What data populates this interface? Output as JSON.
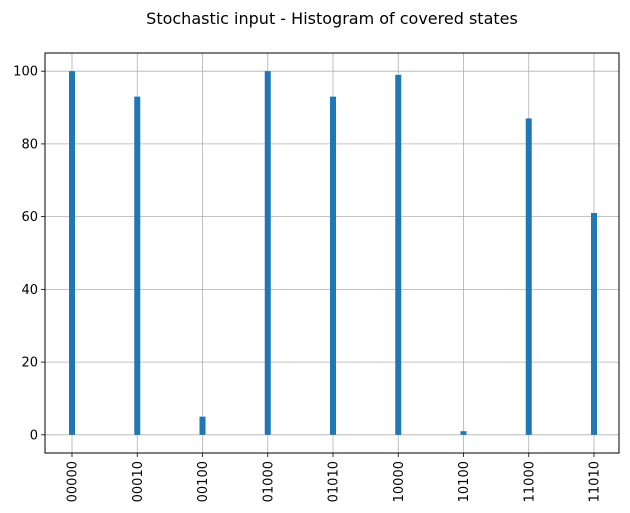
{
  "chart_data": {
    "type": "bar",
    "title": "Stochastic input - Histogram of covered states",
    "xlabel": "",
    "ylabel": "",
    "categories": [
      "00000",
      "00010",
      "00100",
      "01000",
      "01010",
      "10000",
      "10100",
      "11000",
      "11010"
    ],
    "values": [
      100,
      93,
      5,
      100,
      93,
      99,
      1,
      87,
      61
    ],
    "yticks": [
      0,
      20,
      40,
      60,
      80,
      100
    ],
    "ylim": [
      -5,
      105
    ],
    "grid": true,
    "x_tick_rotation": "vertical",
    "bar_color": "#1f77b4"
  }
}
